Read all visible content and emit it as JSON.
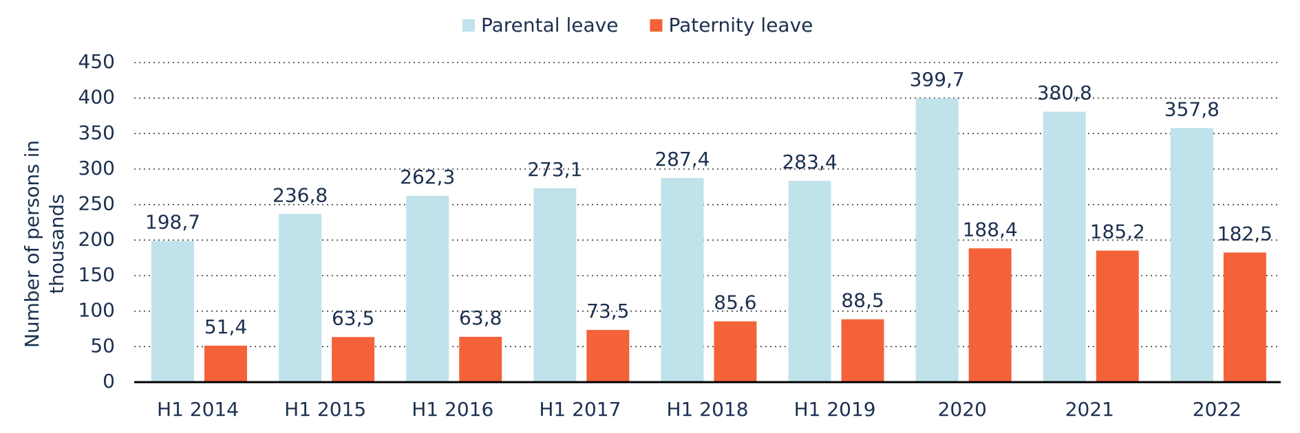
{
  "chart_data": {
    "type": "bar",
    "ylabel": [
      "Number of persons in",
      "thousands"
    ],
    "categories": [
      "H1 2014",
      "H1 2015",
      "H1 2016",
      "H1 2017",
      "H1 2018",
      "H1 2019",
      "2020",
      "2021",
      "2022"
    ],
    "series": [
      {
        "name": "Parental leave",
        "color": "#bfe2eb",
        "values": [
          198.7,
          236.8,
          262.3,
          273.1,
          287.4,
          283.4,
          399.7,
          380.8,
          357.8
        ],
        "value_labels": [
          "198,7",
          "236,8",
          "262,3",
          "273,1",
          "287,4",
          "283,4",
          "399,7",
          "380,8",
          "357,8"
        ]
      },
      {
        "name": "Paternity leave",
        "color": "#f4623a",
        "values": [
          51.4,
          63.5,
          63.8,
          73.5,
          85.6,
          88.5,
          188.4,
          185.2,
          182.5
        ],
        "value_labels": [
          "51,4",
          "63,5",
          "63,8",
          "73,5",
          "85,6",
          "88,5",
          "188,4",
          "185,2",
          "182,5"
        ]
      }
    ],
    "ylim": [
      0,
      450
    ],
    "yticks": [
      0,
      50,
      100,
      150,
      200,
      250,
      300,
      350,
      400,
      450
    ],
    "grid": true,
    "legend": "top"
  }
}
